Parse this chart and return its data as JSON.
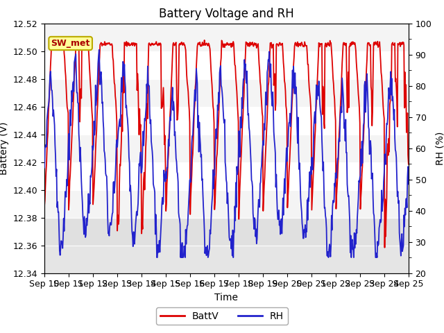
{
  "title": "Battery Voltage and RH",
  "xlabel": "Time",
  "ylabel_left": "Battery (V)",
  "ylabel_right": "RH (%)",
  "ylim_left": [
    12.34,
    12.52
  ],
  "ylim_right": [
    20,
    100
  ],
  "yticks_left": [
    12.34,
    12.36,
    12.38,
    12.4,
    12.42,
    12.44,
    12.46,
    12.48,
    12.5,
    12.52
  ],
  "yticks_right": [
    20,
    30,
    40,
    50,
    60,
    70,
    80,
    90,
    100
  ],
  "x_tick_labels": [
    "Sep 10",
    "Sep 11",
    "Sep 12",
    "Sep 13",
    "Sep 14",
    "Sep 15",
    "Sep 16",
    "Sep 17",
    "Sep 18",
    "Sep 19",
    "Sep 20",
    "Sep 21",
    "Sep 22",
    "Sep 23",
    "Sep 24",
    "Sep 25"
  ],
  "batt_color": "#dd0000",
  "rh_color": "#2222cc",
  "legend_label_batt": "BattV",
  "legend_label_rh": "RH",
  "annotation_text": "SW_met",
  "annotation_bg": "#ffff99",
  "annotation_border": "#bbaa00",
  "bg_color": "#ffffff",
  "plot_bg_upper": "#ffffff",
  "plot_bg_lower": "#e8e8e8",
  "grid_color": "#dddddd",
  "title_fontsize": 12,
  "axis_fontsize": 10,
  "tick_fontsize": 9,
  "n_days": 15,
  "pts_per_day": 48
}
